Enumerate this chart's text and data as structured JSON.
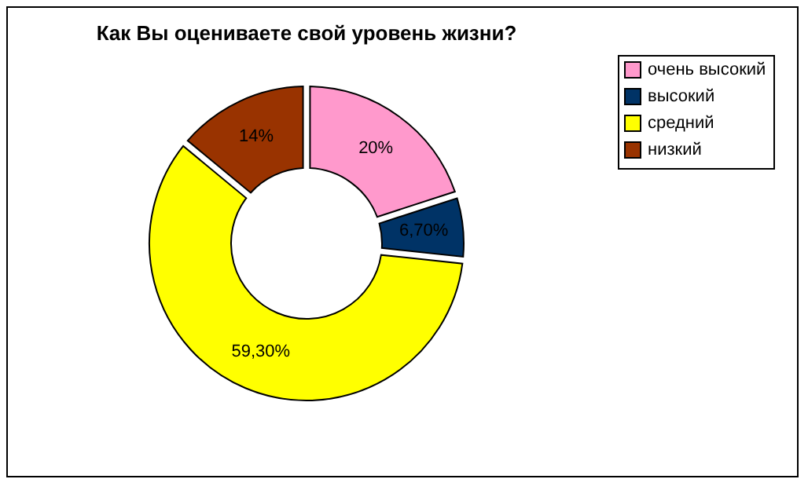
{
  "chart_data": {
    "type": "donut",
    "title": "Как Вы оцениваете свой уровень жизни?",
    "categories": [
      "очень высокий",
      "высокий",
      "средний",
      "низкий"
    ],
    "values": [
      20,
      6.7,
      59.3,
      14
    ],
    "colors": [
      "#ff99cc",
      "#003366",
      "#ffff00",
      "#993300"
    ],
    "value_labels": [
      "20%",
      "6,70%",
      "59,30%",
      "14%"
    ],
    "legend": "right"
  }
}
